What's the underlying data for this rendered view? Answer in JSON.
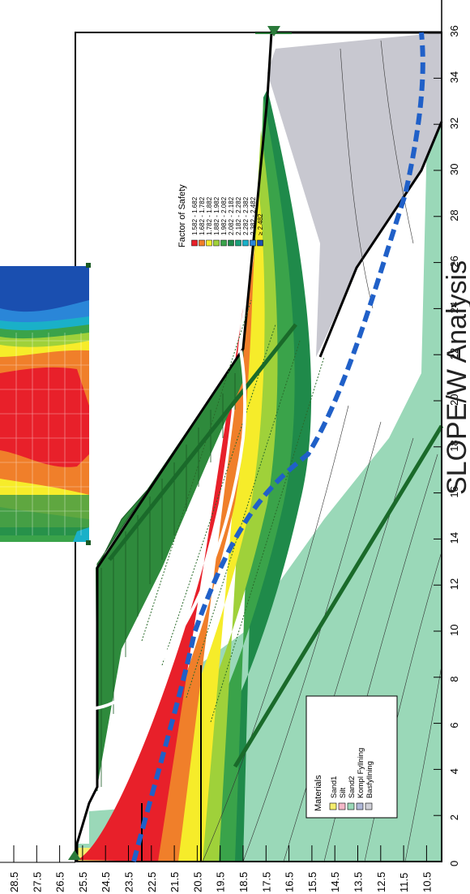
{
  "title": "SLOPE/W Analysis",
  "legend_fos": {
    "title": "Factor of Safety",
    "items": [
      {
        "label": "1.582 - 1.682",
        "color": "#e8202a"
      },
      {
        "label": "1.682 - 1.782",
        "color": "#f07f2a"
      },
      {
        "label": "1.782 - 1.882",
        "color": "#f6ec2a"
      },
      {
        "label": "1.882 - 1.982",
        "color": "#9fd13a"
      },
      {
        "label": "1.982 - 2.082",
        "color": "#3aa34a"
      },
      {
        "label": "2.082 - 2.182",
        "color": "#1f8a4a"
      },
      {
        "label": "2.182 - 2.282",
        "color": "#1aa07a"
      },
      {
        "label": "2.282 - 2.382",
        "color": "#1ab0c8"
      },
      {
        "label": "2.382 - 2.482",
        "color": "#2a86d8"
      },
      {
        "label": "≥ 2.482",
        "color": "#1a4fb0"
      }
    ]
  },
  "legend_materials": {
    "title": "Materials",
    "items": [
      {
        "label": "Sand1",
        "color": "#f5ee6e"
      },
      {
        "label": "Silt",
        "color": "#f4b8c8"
      },
      {
        "label": "Sand2",
        "color": "#9ad8b8"
      },
      {
        "label": "Kompl Fyllning",
        "color": "#b0b8d8"
      },
      {
        "label": "Basfyllning",
        "color": "#d0d0d8"
      }
    ]
  },
  "axis_left": {
    "ticks": [
      "28.5",
      "27.5",
      "26.5",
      "25.5",
      "24.5",
      "23.5",
      "22.5",
      "21.5",
      "20.5",
      "19.5",
      "18.5",
      "17.5",
      "16.5",
      "15.5",
      "14.5",
      "13.5",
      "12.5",
      "11.5",
      "10.5"
    ]
  },
  "axis_right": {
    "ticks": [
      "0",
      "2",
      "4",
      "6",
      "8",
      "10",
      "12",
      "14",
      "16",
      "18",
      "20",
      "22",
      "24",
      "26",
      "28",
      "30",
      "32",
      "34",
      "36"
    ]
  }
}
